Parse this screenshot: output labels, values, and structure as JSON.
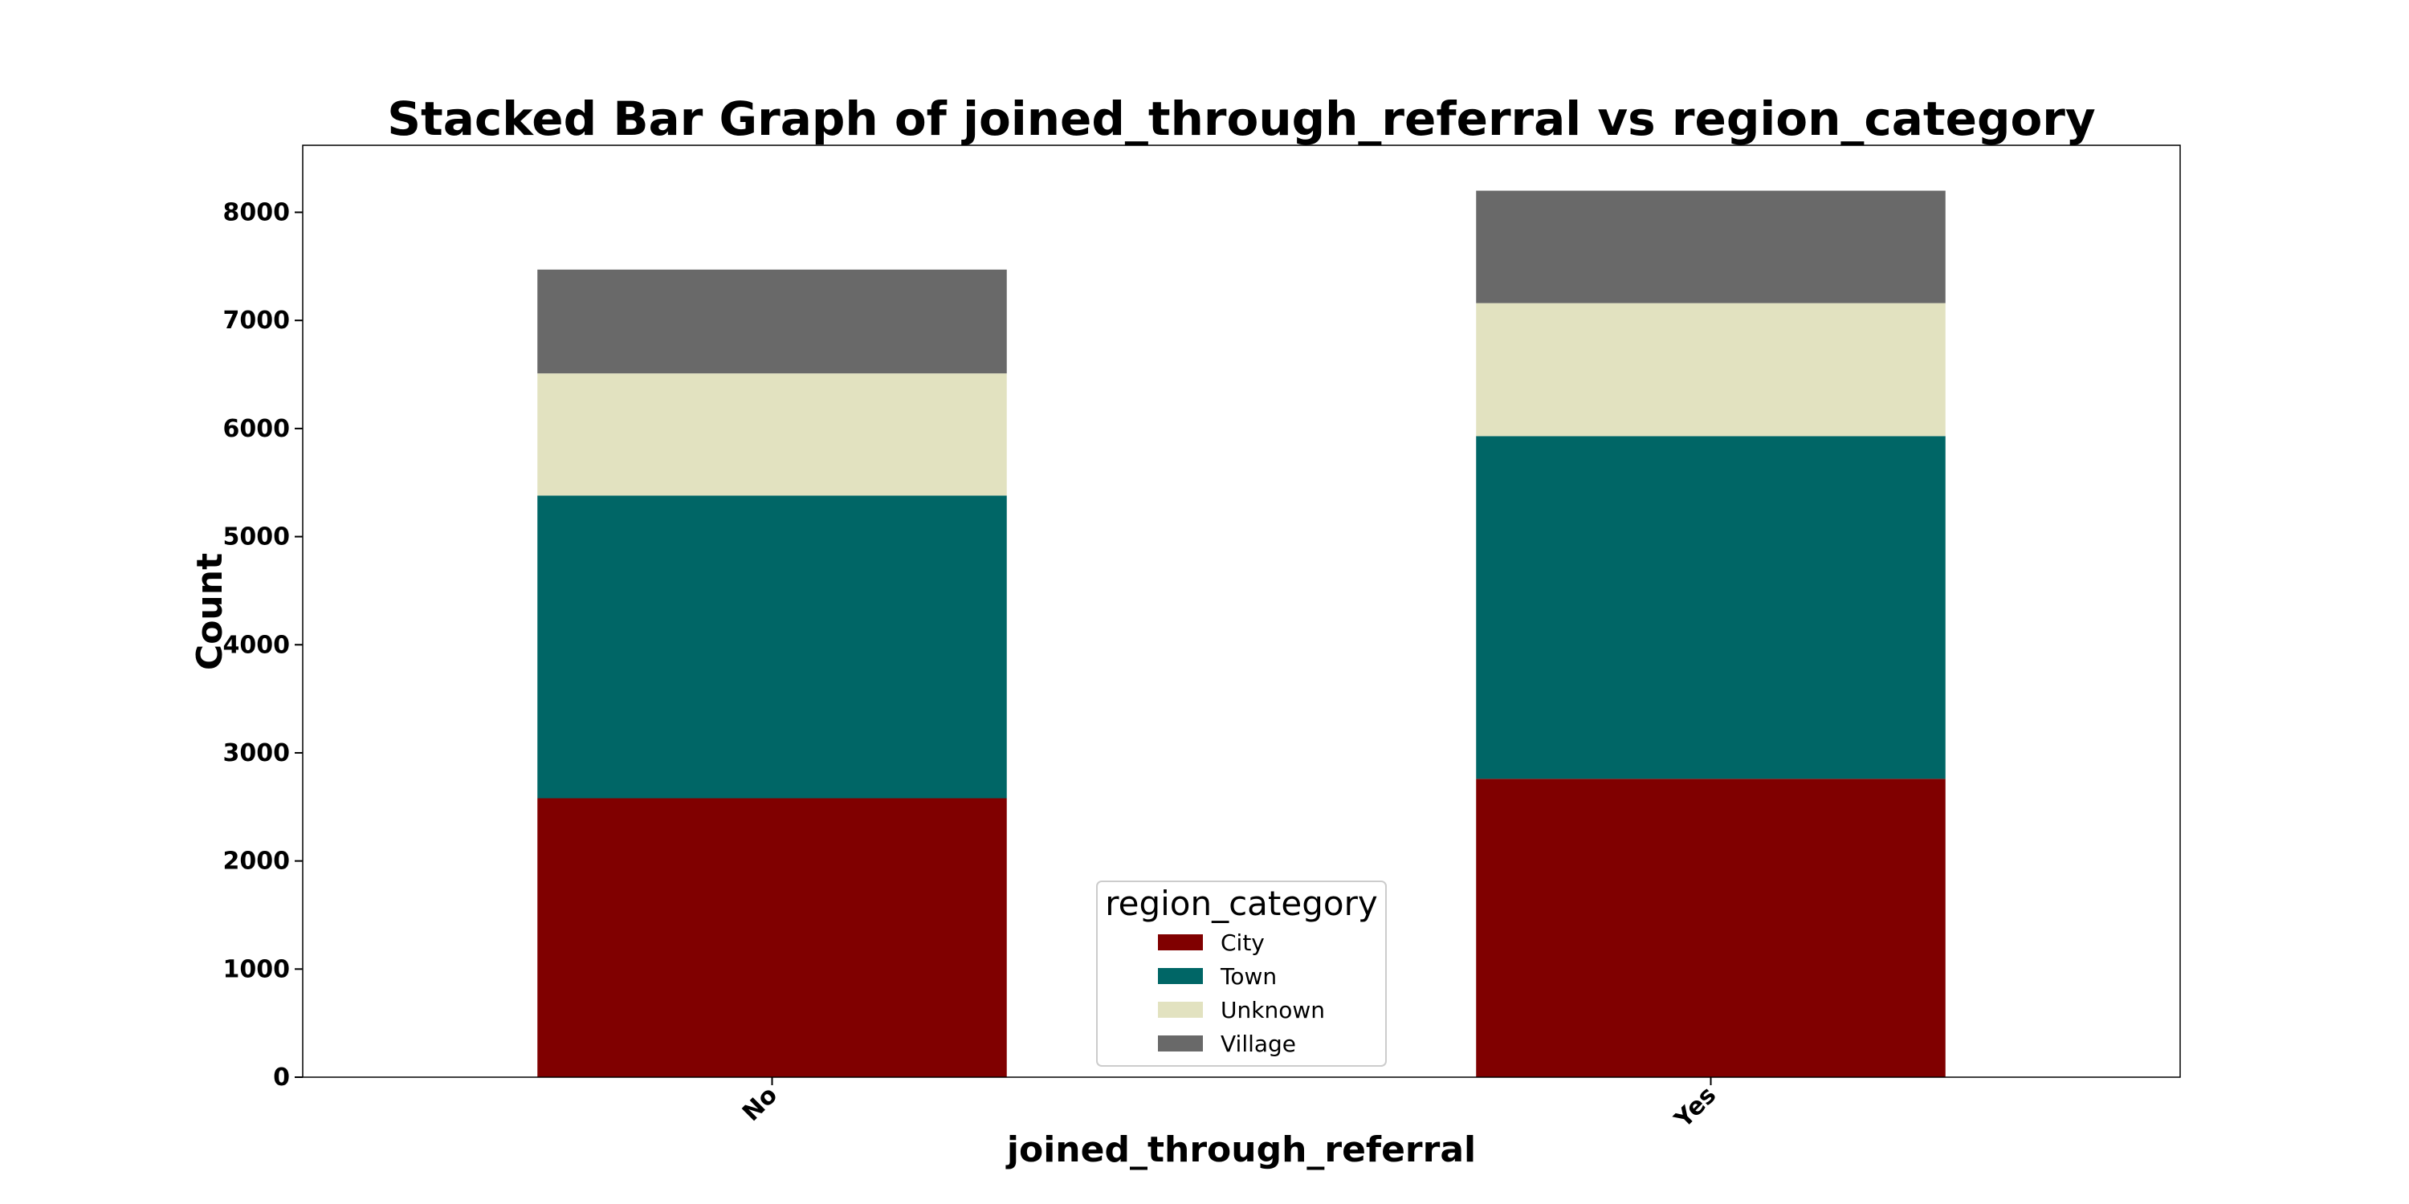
{
  "chart_data": {
    "type": "bar",
    "stacked": true,
    "title": "Stacked Bar Graph of joined_through_referral vs region_category",
    "xlabel": "joined_through_referral",
    "ylabel": "Count",
    "categories": [
      "No",
      "Yes"
    ],
    "series": [
      {
        "name": "City",
        "color": "#800000",
        "values": [
          2580,
          2760
        ]
      },
      {
        "name": "Town",
        "color": "#006666",
        "values": [
          2800,
          3170
        ]
      },
      {
        "name": "Unknown",
        "color": "#e2e2c0",
        "values": [
          1130,
          1230
        ]
      },
      {
        "name": "Village",
        "color": "#696969",
        "values": [
          960,
          1040
        ]
      }
    ],
    "ylim": [
      0,
      8620
    ],
    "yticks": [
      0,
      1000,
      2000,
      3000,
      4000,
      5000,
      6000,
      7000,
      8000
    ],
    "grid": false,
    "legend": {
      "title": "region_category",
      "position": "lower-center"
    }
  }
}
